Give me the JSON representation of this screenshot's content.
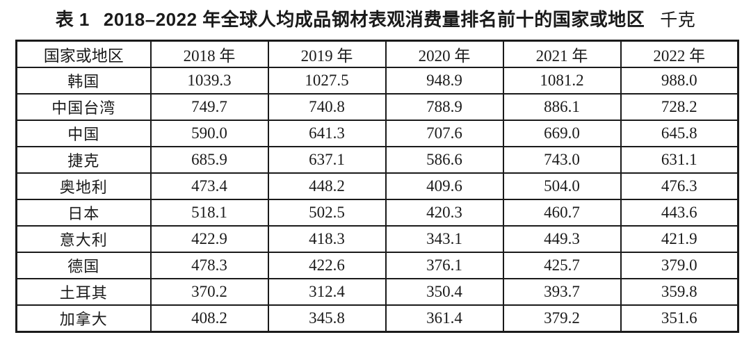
{
  "title": {
    "prefix": "表 1",
    "main": "2018–2022 年全球人均成品钢材表观消费量排名前十的国家或地区",
    "unit": "千克"
  },
  "chart_data": {
    "type": "table",
    "title": "2018–2022 年全球人均成品钢材表观消费量排名前十的国家或地区",
    "unit_label": "千克",
    "columns": [
      "国家或地区",
      "2018 年",
      "2019 年",
      "2020 年",
      "2021 年",
      "2022 年"
    ],
    "rows": [
      [
        "韩国",
        "1039.3",
        "1027.5",
        "948.9",
        "1081.2",
        "988.0"
      ],
      [
        "中国台湾",
        "749.7",
        "740.8",
        "788.9",
        "886.1",
        "728.2"
      ],
      [
        "中国",
        "590.0",
        "641.3",
        "707.6",
        "669.0",
        "645.8"
      ],
      [
        "捷克",
        "685.9",
        "637.1",
        "586.6",
        "743.0",
        "631.1"
      ],
      [
        "奥地利",
        "473.4",
        "448.2",
        "409.6",
        "504.0",
        "476.3"
      ],
      [
        "日本",
        "518.1",
        "502.5",
        "420.3",
        "460.7",
        "443.6"
      ],
      [
        "意大利",
        "422.9",
        "418.3",
        "343.1",
        "449.3",
        "421.9"
      ],
      [
        "德国",
        "478.3",
        "422.6",
        "376.1",
        "425.7",
        "379.0"
      ],
      [
        "土耳其",
        "370.2",
        "312.4",
        "350.4",
        "393.7",
        "359.8"
      ],
      [
        "加拿大",
        "408.2",
        "345.8",
        "361.4",
        "379.2",
        "351.6"
      ]
    ]
  }
}
